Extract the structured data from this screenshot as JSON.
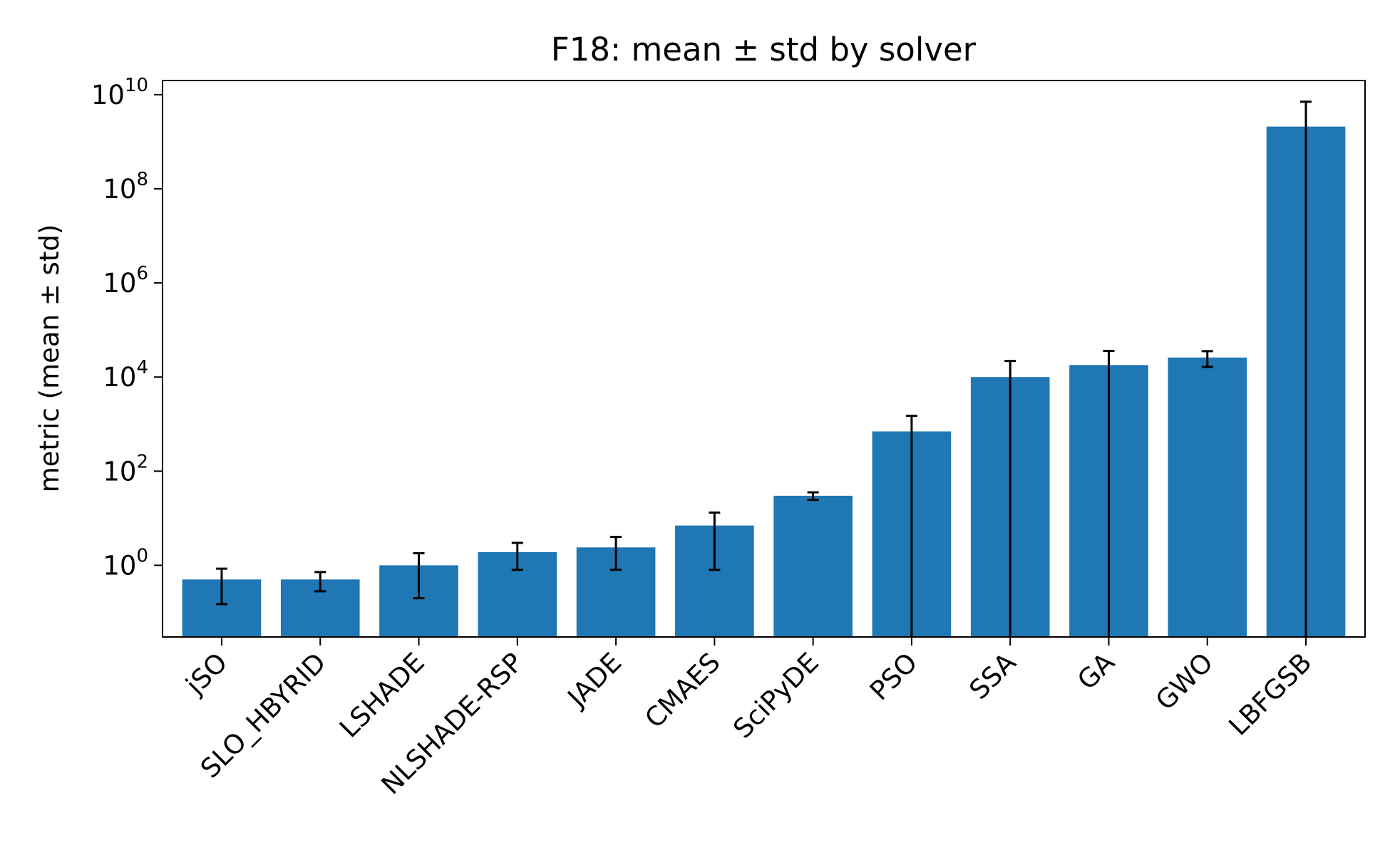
{
  "chart_data": {
    "type": "bar",
    "title": "F18: mean ± std by solver",
    "xlabel": "",
    "ylabel": "metric (mean ± std)",
    "yscale": "log",
    "ylim": [
      0.03,
      20000000000
    ],
    "yticks": [
      {
        "base": "10",
        "exp": "0",
        "value": 1
      },
      {
        "base": "10",
        "exp": "2",
        "value": 100
      },
      {
        "base": "10",
        "exp": "4",
        "value": 10000
      },
      {
        "base": "10",
        "exp": "6",
        "value": 1000000
      },
      {
        "base": "10",
        "exp": "8",
        "value": 100000000
      },
      {
        "base": "10",
        "exp": "10",
        "value": 10000000000
      }
    ],
    "categories": [
      "jSO",
      "SLO_HBYRID",
      "LSHADE",
      "NLSHADE-RSP",
      "JADE",
      "CMAES",
      "SciPyDE",
      "PSO",
      "SSA",
      "GA",
      "GWO",
      "LBFGSB"
    ],
    "values": [
      0.5,
      0.5,
      1.0,
      1.9,
      2.4,
      7.0,
      30,
      700,
      10000,
      18000,
      26000,
      2100000000
    ],
    "errors": [
      0.35,
      0.22,
      0.8,
      1.1,
      1.6,
      6.2,
      5.5,
      800,
      12000,
      18000,
      9500,
      5000000000
    ],
    "bar_color": "#1f77b4",
    "error_color": "#000000",
    "grid": false,
    "legend": "none"
  }
}
